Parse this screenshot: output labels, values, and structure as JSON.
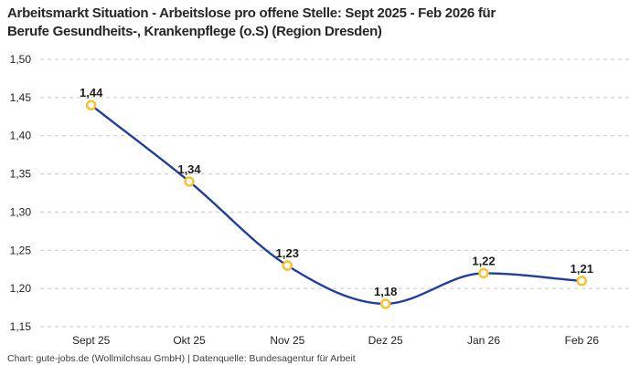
{
  "title": {
    "lines": [
      "Arbeitsmarkt Situation - Arbeitslose pro offene Stelle: Sept 2025 - Feb 2026 für",
      "Berufe Gesundheits-, Krankenpflege (o.S) (Region Dresden)"
    ]
  },
  "footer": {
    "text": "Chart: gute-jobs.de (Wollmilchsau GmbH) | Datenquelle: Bundesagentur für Arbeit"
  },
  "colors": {
    "line": "#1f3e9e",
    "marker_ring": "#f9c32e",
    "marker_fill": "#ffffff",
    "grid": "#c8c8c8",
    "title_text": "#262626",
    "axis_text": "#222222",
    "value_label_text": "#1d1d1d",
    "footer_text": "#3d3d3d"
  },
  "chart_data": {
    "type": "line",
    "title": "Arbeitsmarkt Situation - Arbeitslose pro offene Stelle: Sept 2025 - Feb 2026 für Berufe Gesundheits-, Krankenpflege (o.S) (Region Dresden)",
    "categories": [
      "Sept 25",
      "Okt 25",
      "Nov 25",
      "Dez 25",
      "Jan 26",
      "Feb 26"
    ],
    "values": [
      1.44,
      1.34,
      1.23,
      1.18,
      1.22,
      1.21
    ],
    "value_labels": [
      "1,44",
      "1,34",
      "1,23",
      "1,18",
      "1,22",
      "1,21"
    ],
    "ylim": [
      1.15,
      1.5
    ],
    "ytick_step": 0.05,
    "ytick_labels": [
      "1,50",
      "1,45",
      "1,40",
      "1,35",
      "1,30",
      "1,25",
      "1,20",
      "1,15"
    ],
    "xlabel": "",
    "ylabel": "",
    "grid": "horizontal-dashed",
    "legend": "none",
    "marker": "open-circle",
    "line_interpolation": "monotone"
  }
}
